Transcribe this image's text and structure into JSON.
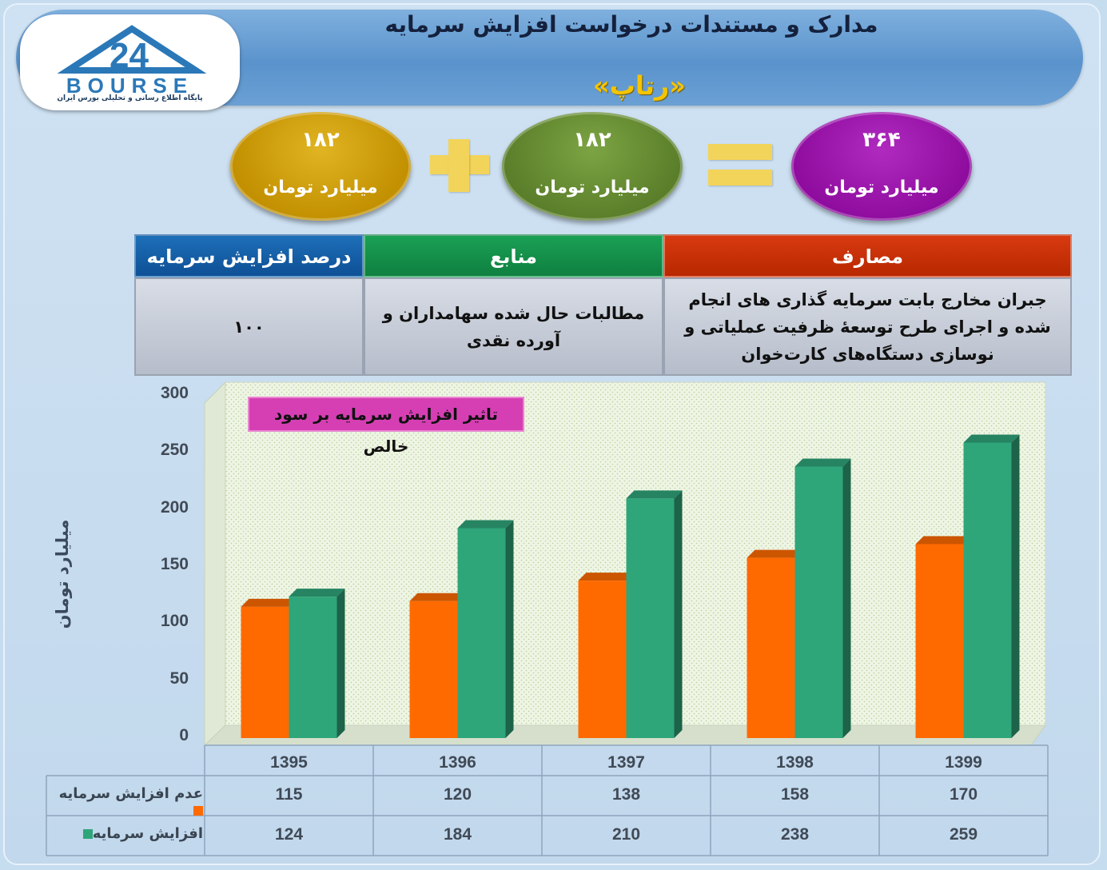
{
  "header": {
    "title": "مدارک و مستندات درخواست افزایش سرمایه",
    "subtitle": "«رتاپ»",
    "logo_word": "BOURSE",
    "logo_tagline": "پایگاه اطلاع رسانی و تحلیلی بورس ایران"
  },
  "equation": {
    "left": {
      "value": "۱۸۲",
      "unit": "میلیارد تومان",
      "color": "#c9980a"
    },
    "middle": {
      "value": "۱۸۲",
      "unit": "میلیارد تومان",
      "color": "#668c33"
    },
    "result": {
      "value": "۳۶۴",
      "unit": "میلیارد تومان",
      "color": "#9b14ab"
    },
    "operator_color": "#f3d45a"
  },
  "info_table": {
    "headers": {
      "percent": "درصد افزایش سرمایه",
      "sources": "منابع",
      "uses": "مصارف"
    },
    "values": {
      "percent": "۱۰۰",
      "sources": "مطالبات حال شده سهامداران و آورده نقدی",
      "uses": "جبران مخارج بابت سرمایه گذاری های انجام شده و اجرای طرح توسعهٔ ظرفیت عملیاتی و نوسازی دستگاه‌های کارت‌خوان"
    }
  },
  "chart_data": {
    "type": "bar",
    "title": "تاثیر افزایش سرمایه بر سود خالص",
    "ylabel": "میلیارد تومان",
    "xlabel": "",
    "ylim": [
      0,
      300
    ],
    "yticks": [
      0,
      50,
      100,
      150,
      200,
      250,
      300
    ],
    "categories": [
      "1395",
      "1396",
      "1397",
      "1398",
      "1399"
    ],
    "series": [
      {
        "name": "عدم افزایش سرمایه",
        "values": [
          115,
          120,
          138,
          158,
          170
        ],
        "color": "#ff6a00"
      },
      {
        "name": "افزایش سرمایه",
        "values": [
          124,
          184,
          210,
          238,
          259
        ],
        "color": "#2fa57a"
      }
    ],
    "grid": false,
    "legend": "data-table-below"
  }
}
